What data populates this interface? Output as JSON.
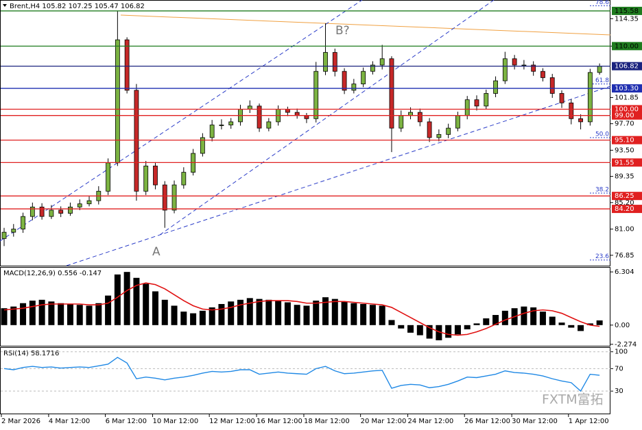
{
  "chart_data": {
    "type": "candlestick",
    "title": "Brent,H4  105.82 107.25 105.47 106.82",
    "x": [
      "2 Mar 2026",
      null,
      null,
      null,
      null,
      "4 Mar 12:00",
      null,
      null,
      null,
      null,
      null,
      "6 Mar 12:00",
      null,
      null,
      null,
      null,
      "10 Mar 12:00",
      null,
      null,
      null,
      null,
      null,
      "12 Mar 12:00",
      null,
      null,
      null,
      null,
      "16 Mar 12:00",
      null,
      null,
      null,
      null,
      "18 Mar 12:00",
      null,
      null,
      null,
      null,
      null,
      "20 Mar 12:00",
      null,
      null,
      null,
      null,
      "24 Mar 12:00",
      null,
      null,
      null,
      null,
      null,
      "26 Mar 12:00",
      null,
      null,
      null,
      null,
      "30 Mar 12:00",
      null,
      null,
      null,
      null,
      null,
      "1 Apr 12:00",
      null,
      null,
      null
    ],
    "open": [
      79.5,
      80.5,
      81,
      83,
      84.5,
      83,
      84,
      83.5,
      84.5,
      85,
      85.5,
      87,
      91.5,
      111,
      103,
      87,
      91,
      88,
      84,
      88,
      90,
      93,
      95.5,
      97.5,
      97.5,
      98,
      100,
      100.5,
      97,
      98,
      100,
      99.5,
      99,
      98.5,
      106,
      109,
      106,
      103,
      104,
      106,
      107,
      108,
      97,
      99,
      99.5,
      98,
      95.5,
      96,
      97,
      99,
      101.5,
      100.5,
      102.5,
      104.5,
      108,
      107,
      107,
      106,
      105,
      102.5,
      101,
      98.5,
      98,
      105.82
    ],
    "high": [
      81.2,
      81.8,
      83.6,
      85.2,
      85.1,
      84.8,
      84.6,
      85.2,
      85.7,
      86.2,
      87.8,
      92.2,
      115.58,
      111.4,
      104,
      91.8,
      91.6,
      88.6,
      88.7,
      90.8,
      93.7,
      96.2,
      98.3,
      98.4,
      98.6,
      100.7,
      101.4,
      100.9,
      98.6,
      100.6,
      100.4,
      100.1,
      99.4,
      107.5,
      113.6,
      109.6,
      106.5,
      104.8,
      106.6,
      107.6,
      110.2,
      108.4,
      99.8,
      100.3,
      100.1,
      98.6,
      96.8,
      97.7,
      99.6,
      102.1,
      102.2,
      103.1,
      105.2,
      109.1,
      108.6,
      107.8,
      107.6,
      106.5,
      105.6,
      103,
      101.6,
      99.2,
      106.4,
      107.25
    ],
    "low": [
      78.3,
      79.8,
      80.4,
      82.4,
      82.5,
      82.6,
      82.9,
      83.1,
      84,
      84.6,
      84.9,
      86.4,
      91,
      102.5,
      85.5,
      86.4,
      87.3,
      81.2,
      83.5,
      87.4,
      89.5,
      92.5,
      94.9,
      96.8,
      96.9,
      97.4,
      99.4,
      96.4,
      96.5,
      97.4,
      98.9,
      98.5,
      97.8,
      97.9,
      105.4,
      105.2,
      102.4,
      102.5,
      103.5,
      105.5,
      106.3,
      93.2,
      96.4,
      98.4,
      97.3,
      94.8,
      94.9,
      95.4,
      96.5,
      98.4,
      99.8,
      100,
      101.9,
      104,
      106.3,
      106.3,
      105.3,
      104.4,
      101.8,
      100.2,
      97.6,
      96.8,
      97.4,
      105.47
    ],
    "close": [
      80.5,
      81,
      83,
      84.5,
      83,
      84,
      83.5,
      84.5,
      85,
      85.5,
      87,
      91.5,
      111,
      103,
      87,
      91,
      88,
      84,
      88,
      90,
      93,
      95.5,
      97.5,
      97.5,
      98,
      100,
      100.5,
      97,
      98,
      100,
      99.5,
      99,
      98.5,
      106,
      109,
      106,
      103,
      104,
      106,
      107,
      108,
      97,
      99,
      99.5,
      98,
      95.5,
      96,
      97,
      99,
      101.5,
      100.5,
      102.5,
      104.5,
      108,
      107,
      107,
      106,
      105,
      102.5,
      101,
      98.5,
      98,
      105.82,
      106.82
    ],
    "up_color": "#7cb342",
    "down_color": "#c62828",
    "ylim": [
      75.2,
      117.2
    ],
    "yticks": [
      114.35,
      {
        "value": 110,
        "label": "110.00"
      },
      101.85,
      {
        "value": 97.7,
        "label": "97.70"
      },
      {
        "value": 93.5,
        "label": "93.50"
      },
      89.35,
      {
        "value": 85.2,
        "label": "85.20"
      },
      {
        "value": 81,
        "label": "81.00"
      },
      76.85
    ],
    "levels": [
      {
        "value": 115.58,
        "label": "115.58",
        "color": "#1e7b1e",
        "text_color": "#000000"
      },
      {
        "value": 110,
        "label": "110.00",
        "color": "#1e7b1e",
        "text_color": "#000000"
      },
      {
        "value": 106.82,
        "label": "106.82",
        "color": "#1a237e",
        "text_color": "#ffffff"
      },
      {
        "value": 103.3,
        "label": "103.30",
        "color": "#1f2fb0",
        "text_color": "#ffffff"
      },
      {
        "value": 100,
        "label": "100.00",
        "color": "#e02020",
        "text_color": "#ffffff"
      },
      {
        "value": 99,
        "label": "99.00",
        "color": "#e02020",
        "text_color": "#ffffff"
      },
      {
        "value": 95.1,
        "label": "95.10",
        "color": "#e02020",
        "text_color": "#ffffff"
      },
      {
        "value": 91.55,
        "label": "91.55",
        "color": "#e02020",
        "text_color": "#ffffff"
      },
      {
        "value": 86.25,
        "label": "86.25",
        "color": "#e02020",
        "text_color": "#ffffff"
      },
      {
        "value": 84.2,
        "label": "84.20",
        "color": "#e02020",
        "text_color": "#ffffff"
      }
    ],
    "fib_levels": [
      {
        "value": 116.4,
        "label": "78.6"
      },
      {
        "value": 104.0,
        "label": "61.8"
      },
      {
        "value": 95.5,
        "label": "50.0"
      },
      {
        "value": 86.7,
        "label": "38.2"
      },
      {
        "value": 76.1,
        "label": "23.6"
      }
    ],
    "annotations": [
      "A",
      "B?"
    ],
    "watermark": "FXTM富拓",
    "macd": {
      "title": "MACD(12,26,9) 0.556 -0.147",
      "ylim": [
        -2.45,
        6.8
      ],
      "yticks": [
        6.304,
        {
          "value": 0,
          "label": "0.00"
        },
        -2.274
      ],
      "values": [
        2.0,
        2.2,
        2.6,
        2.9,
        3.0,
        2.8,
        2.6,
        2.5,
        2.4,
        2.3,
        2.6,
        3.5,
        6.0,
        6.3,
        5.6,
        4.9,
        4.0,
        3.0,
        2.3,
        1.6,
        1.4,
        1.7,
        2.1,
        2.5,
        2.8,
        3.0,
        3.2,
        3.1,
        3.0,
        2.9,
        2.7,
        2.4,
        2.3,
        2.9,
        3.3,
        3.1,
        2.8,
        2.6,
        2.5,
        2.4,
        2.3,
        0.6,
        -0.4,
        -0.9,
        -1.2,
        -1.6,
        -1.8,
        -1.5,
        -1.1,
        -0.5,
        0.2,
        0.8,
        1.2,
        1.7,
        2.0,
        2.2,
        2.1,
        1.6,
        1.0,
        0.3,
        -0.3,
        -0.7,
        0.2,
        0.556
      ],
      "signal": [
        1.8,
        1.9,
        2.0,
        2.2,
        2.4,
        2.5,
        2.5,
        2.5,
        2.5,
        2.4,
        2.4,
        2.6,
        3.3,
        4.1,
        4.7,
        5.0,
        4.8,
        4.3,
        3.6,
        2.9,
        2.3,
        1.9,
        1.8,
        1.9,
        2.1,
        2.4,
        2.6,
        2.8,
        2.9,
        2.9,
        2.9,
        2.8,
        2.6,
        2.6,
        2.7,
        2.8,
        2.8,
        2.7,
        2.6,
        2.5,
        2.4,
        2.1,
        1.5,
        0.9,
        0.3,
        -0.3,
        -0.8,
        -1.1,
        -1.2,
        -1.1,
        -0.8,
        -0.4,
        0.1,
        0.6,
        1.0,
        1.4,
        1.7,
        1.8,
        1.7,
        1.4,
        0.9,
        0.4,
        0.0,
        -0.147
      ],
      "color": "#000000",
      "signal_color": "#e01010"
    },
    "rsi": {
      "title": "RSI(14) 58.1716",
      "ylim": [
        -10,
        107
      ],
      "yticks": [
        100,
        70,
        30
      ],
      "values": [
        70,
        68,
        72,
        74,
        72,
        73,
        71,
        72,
        73,
        72,
        75,
        78,
        90,
        80,
        52,
        55,
        53,
        50,
        53,
        55,
        58,
        62,
        65,
        64,
        65,
        68,
        68,
        60,
        62,
        64,
        62,
        61,
        60,
        70,
        74,
        66,
        61,
        62,
        64,
        66,
        67,
        35,
        40,
        42,
        41,
        36,
        38,
        42,
        48,
        55,
        54,
        57,
        60,
        66,
        63,
        62,
        60,
        57,
        52,
        48,
        45,
        30,
        60,
        58.1716
      ],
      "color": "#1e88e5"
    }
  }
}
